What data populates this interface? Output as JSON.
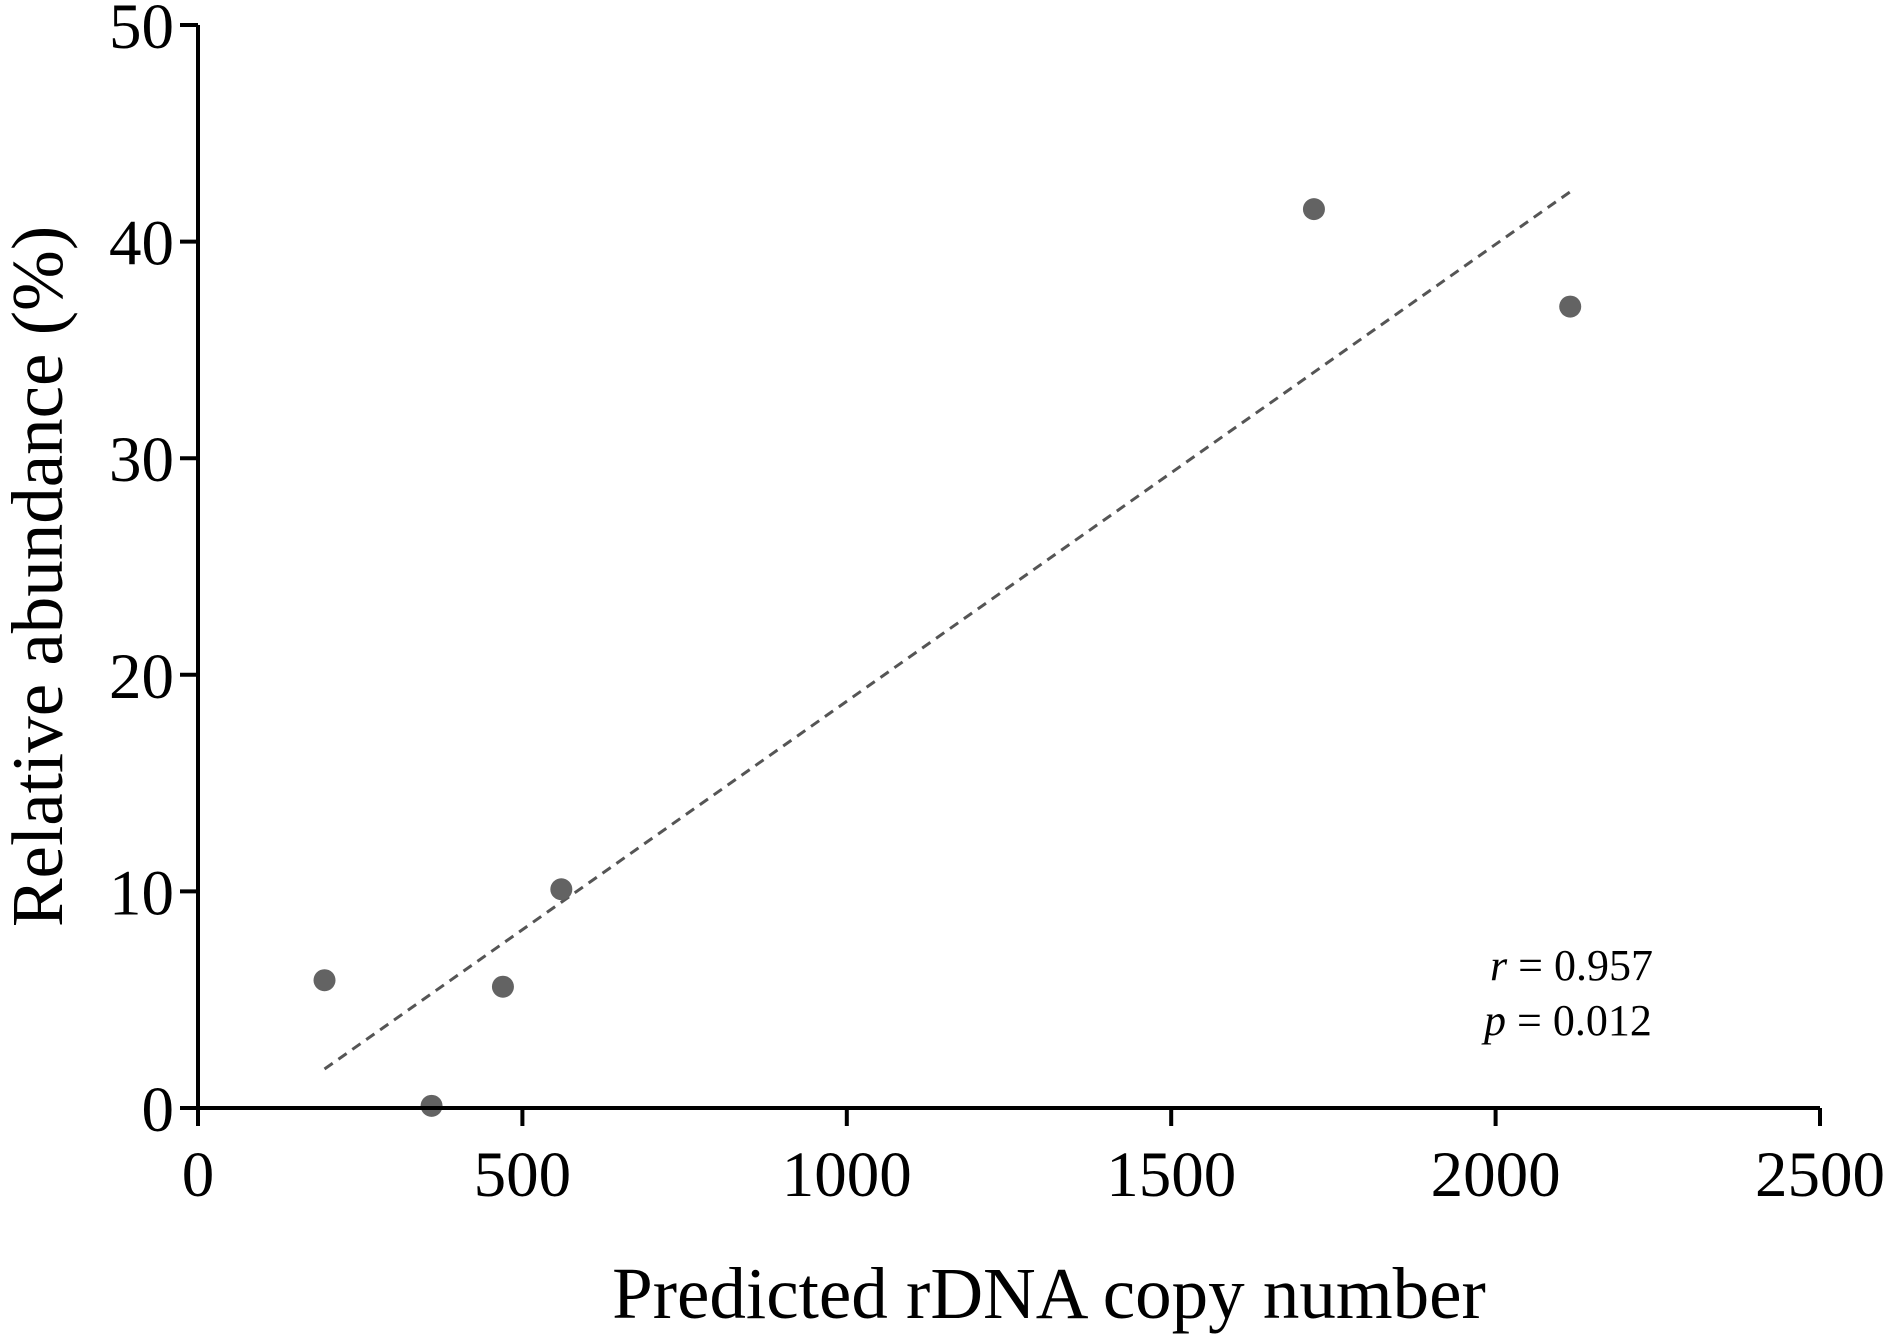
{
  "chart_data": {
    "type": "scatter",
    "xlabel": "Predicted rDNA copy number",
    "ylabel": "Relative abundance (%)",
    "xlim": [
      0,
      2500
    ],
    "ylim": [
      0,
      50
    ],
    "xticks": [
      0,
      500,
      1000,
      1500,
      2000,
      2500
    ],
    "yticks": [
      0,
      10,
      20,
      30,
      40,
      50
    ],
    "grid": false,
    "points": [
      {
        "x": 195,
        "y": 5.9
      },
      {
        "x": 360,
        "y": 0.1
      },
      {
        "x": 470,
        "y": 5.6
      },
      {
        "x": 560,
        "y": 10.1
      },
      {
        "x": 1720,
        "y": 41.5
      },
      {
        "x": 2115,
        "y": 37.0
      }
    ],
    "trendline": {
      "style": "dashed",
      "x": [
        195,
        2115
      ],
      "y": [
        1.8,
        42.3
      ]
    },
    "marker_color": "#636363",
    "trendline_color": "#555555",
    "annotations": {
      "r_symbol": "r",
      "r_text": " = 0.957",
      "p_symbol": "p",
      "p_text": " = 0.012"
    }
  }
}
